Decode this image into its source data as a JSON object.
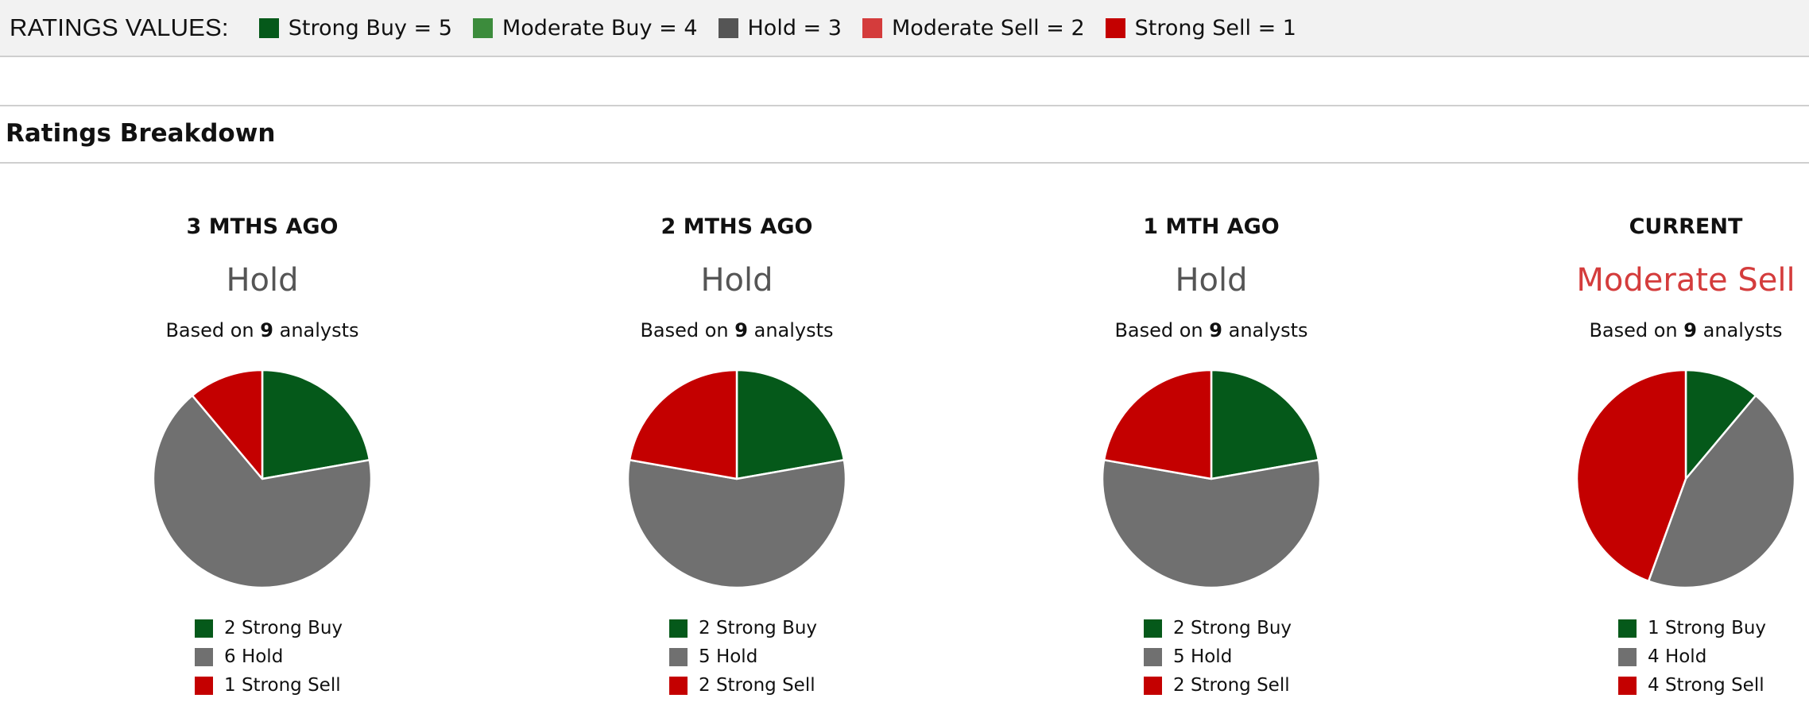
{
  "ratings_values": {
    "title": "RATINGS VALUES:",
    "items": [
      {
        "label": "Strong Buy = 5",
        "color": "#05591a"
      },
      {
        "label": "Moderate Buy = 4",
        "color": "#3c8c3c"
      },
      {
        "label": "Hold = 3",
        "color": "#555555"
      },
      {
        "label": "Moderate Sell = 2",
        "color": "#d43c3c"
      },
      {
        "label": "Strong Sell = 1",
        "color": "#c40000"
      }
    ]
  },
  "section": {
    "title": "Ratings Breakdown"
  },
  "chart_data": [
    {
      "type": "pie",
      "title": "3 MTHS AGO",
      "rating": "Hold",
      "rating_color": "#555555",
      "basis_prefix": "Based on",
      "analysts": "9",
      "basis_suffix": "analysts",
      "slices": [
        {
          "label": "2 Strong Buy",
          "value": 2,
          "color": "#05591a"
        },
        {
          "label": "6 Hold",
          "value": 6,
          "color": "#707070"
        },
        {
          "label": "1 Strong Sell",
          "value": 1,
          "color": "#c40000"
        }
      ]
    },
    {
      "type": "pie",
      "title": "2 MTHS AGO",
      "rating": "Hold",
      "rating_color": "#555555",
      "basis_prefix": "Based on",
      "analysts": "9",
      "basis_suffix": "analysts",
      "slices": [
        {
          "label": "2 Strong Buy",
          "value": 2,
          "color": "#05591a"
        },
        {
          "label": "5 Hold",
          "value": 5,
          "color": "#707070"
        },
        {
          "label": "2 Strong Sell",
          "value": 2,
          "color": "#c40000"
        }
      ]
    },
    {
      "type": "pie",
      "title": "1 MTH AGO",
      "rating": "Hold",
      "rating_color": "#555555",
      "basis_prefix": "Based on",
      "analysts": "9",
      "basis_suffix": "analysts",
      "slices": [
        {
          "label": "2 Strong Buy",
          "value": 2,
          "color": "#05591a"
        },
        {
          "label": "5 Hold",
          "value": 5,
          "color": "#707070"
        },
        {
          "label": "2 Strong Sell",
          "value": 2,
          "color": "#c40000"
        }
      ]
    },
    {
      "type": "pie",
      "title": "CURRENT",
      "rating": "Moderate Sell",
      "rating_color": "#d43c3c",
      "basis_prefix": "Based on",
      "analysts": "9",
      "basis_suffix": "analysts",
      "slices": [
        {
          "label": "1 Strong Buy",
          "value": 1,
          "color": "#05591a"
        },
        {
          "label": "4 Hold",
          "value": 4,
          "color": "#707070"
        },
        {
          "label": "4 Strong Sell",
          "value": 4,
          "color": "#c40000"
        }
      ]
    }
  ]
}
